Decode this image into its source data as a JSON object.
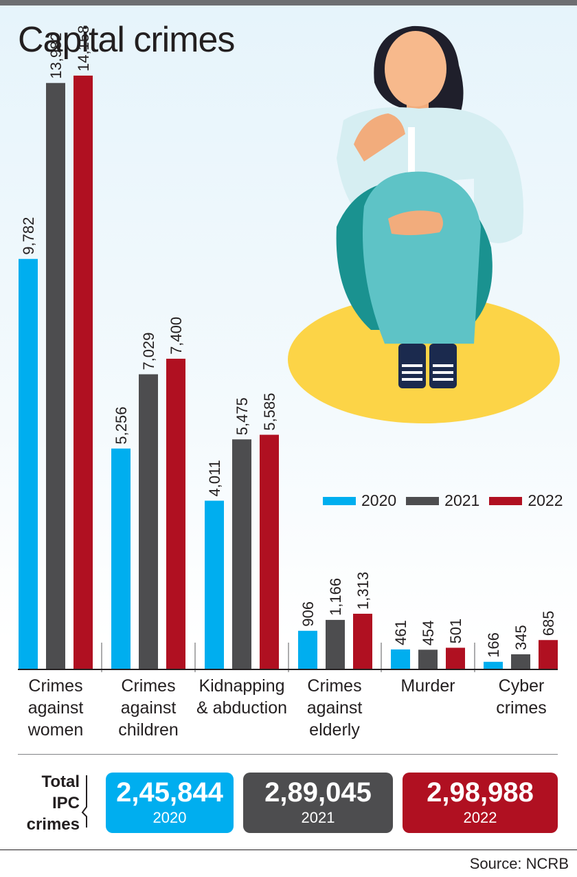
{
  "title": "Capital crimes",
  "colors": {
    "y2020": "#00aeef",
    "y2021": "#4d4d4f",
    "y2022": "#b01021"
  },
  "legend": [
    "2020",
    "2021",
    "2022"
  ],
  "illustration": "woman-sitting-covering-face",
  "chart_data": {
    "type": "bar",
    "title": "Capital crimes",
    "categories": [
      "Crimes against women",
      "Crimes against children",
      "Kidnapping & abduction",
      "Crimes against elderly",
      "Murder",
      "Cyber crimes"
    ],
    "series": [
      {
        "name": "2020",
        "values": [
          9782,
          5256,
          4011,
          906,
          461,
          166
        ],
        "labels": [
          "9,782",
          "5,256",
          "4,011",
          "906",
          "461",
          "166"
        ]
      },
      {
        "name": "2021",
        "values": [
          13982,
          7029,
          5475,
          1166,
          454,
          345
        ],
        "labels": [
          "13,982",
          "7,029",
          "5,475",
          "1,166",
          "454",
          "345"
        ]
      },
      {
        "name": "2022",
        "values": [
          14158,
          7400,
          5585,
          1313,
          501,
          685
        ],
        "labels": [
          "14,158",
          "7,400",
          "5,585",
          "1,313",
          "501",
          "685"
        ]
      }
    ],
    "legend_position": "right",
    "grid": false
  },
  "category_labels": [
    "Crimes\nagainst\nwomen",
    "Crimes\nagainst\nchildren",
    "Kidnapping\n& abduction",
    "Crimes\nagainst\nelderly",
    "Murder",
    "Cyber\ncrimes"
  ],
  "totals": {
    "label": "Total\nIPC\ncrimes",
    "items": [
      {
        "value": "2,45,844",
        "year": "2020"
      },
      {
        "value": "2,89,045",
        "year": "2021"
      },
      {
        "value": "2,98,988",
        "year": "2022"
      }
    ]
  },
  "source": "Source: NCRB"
}
